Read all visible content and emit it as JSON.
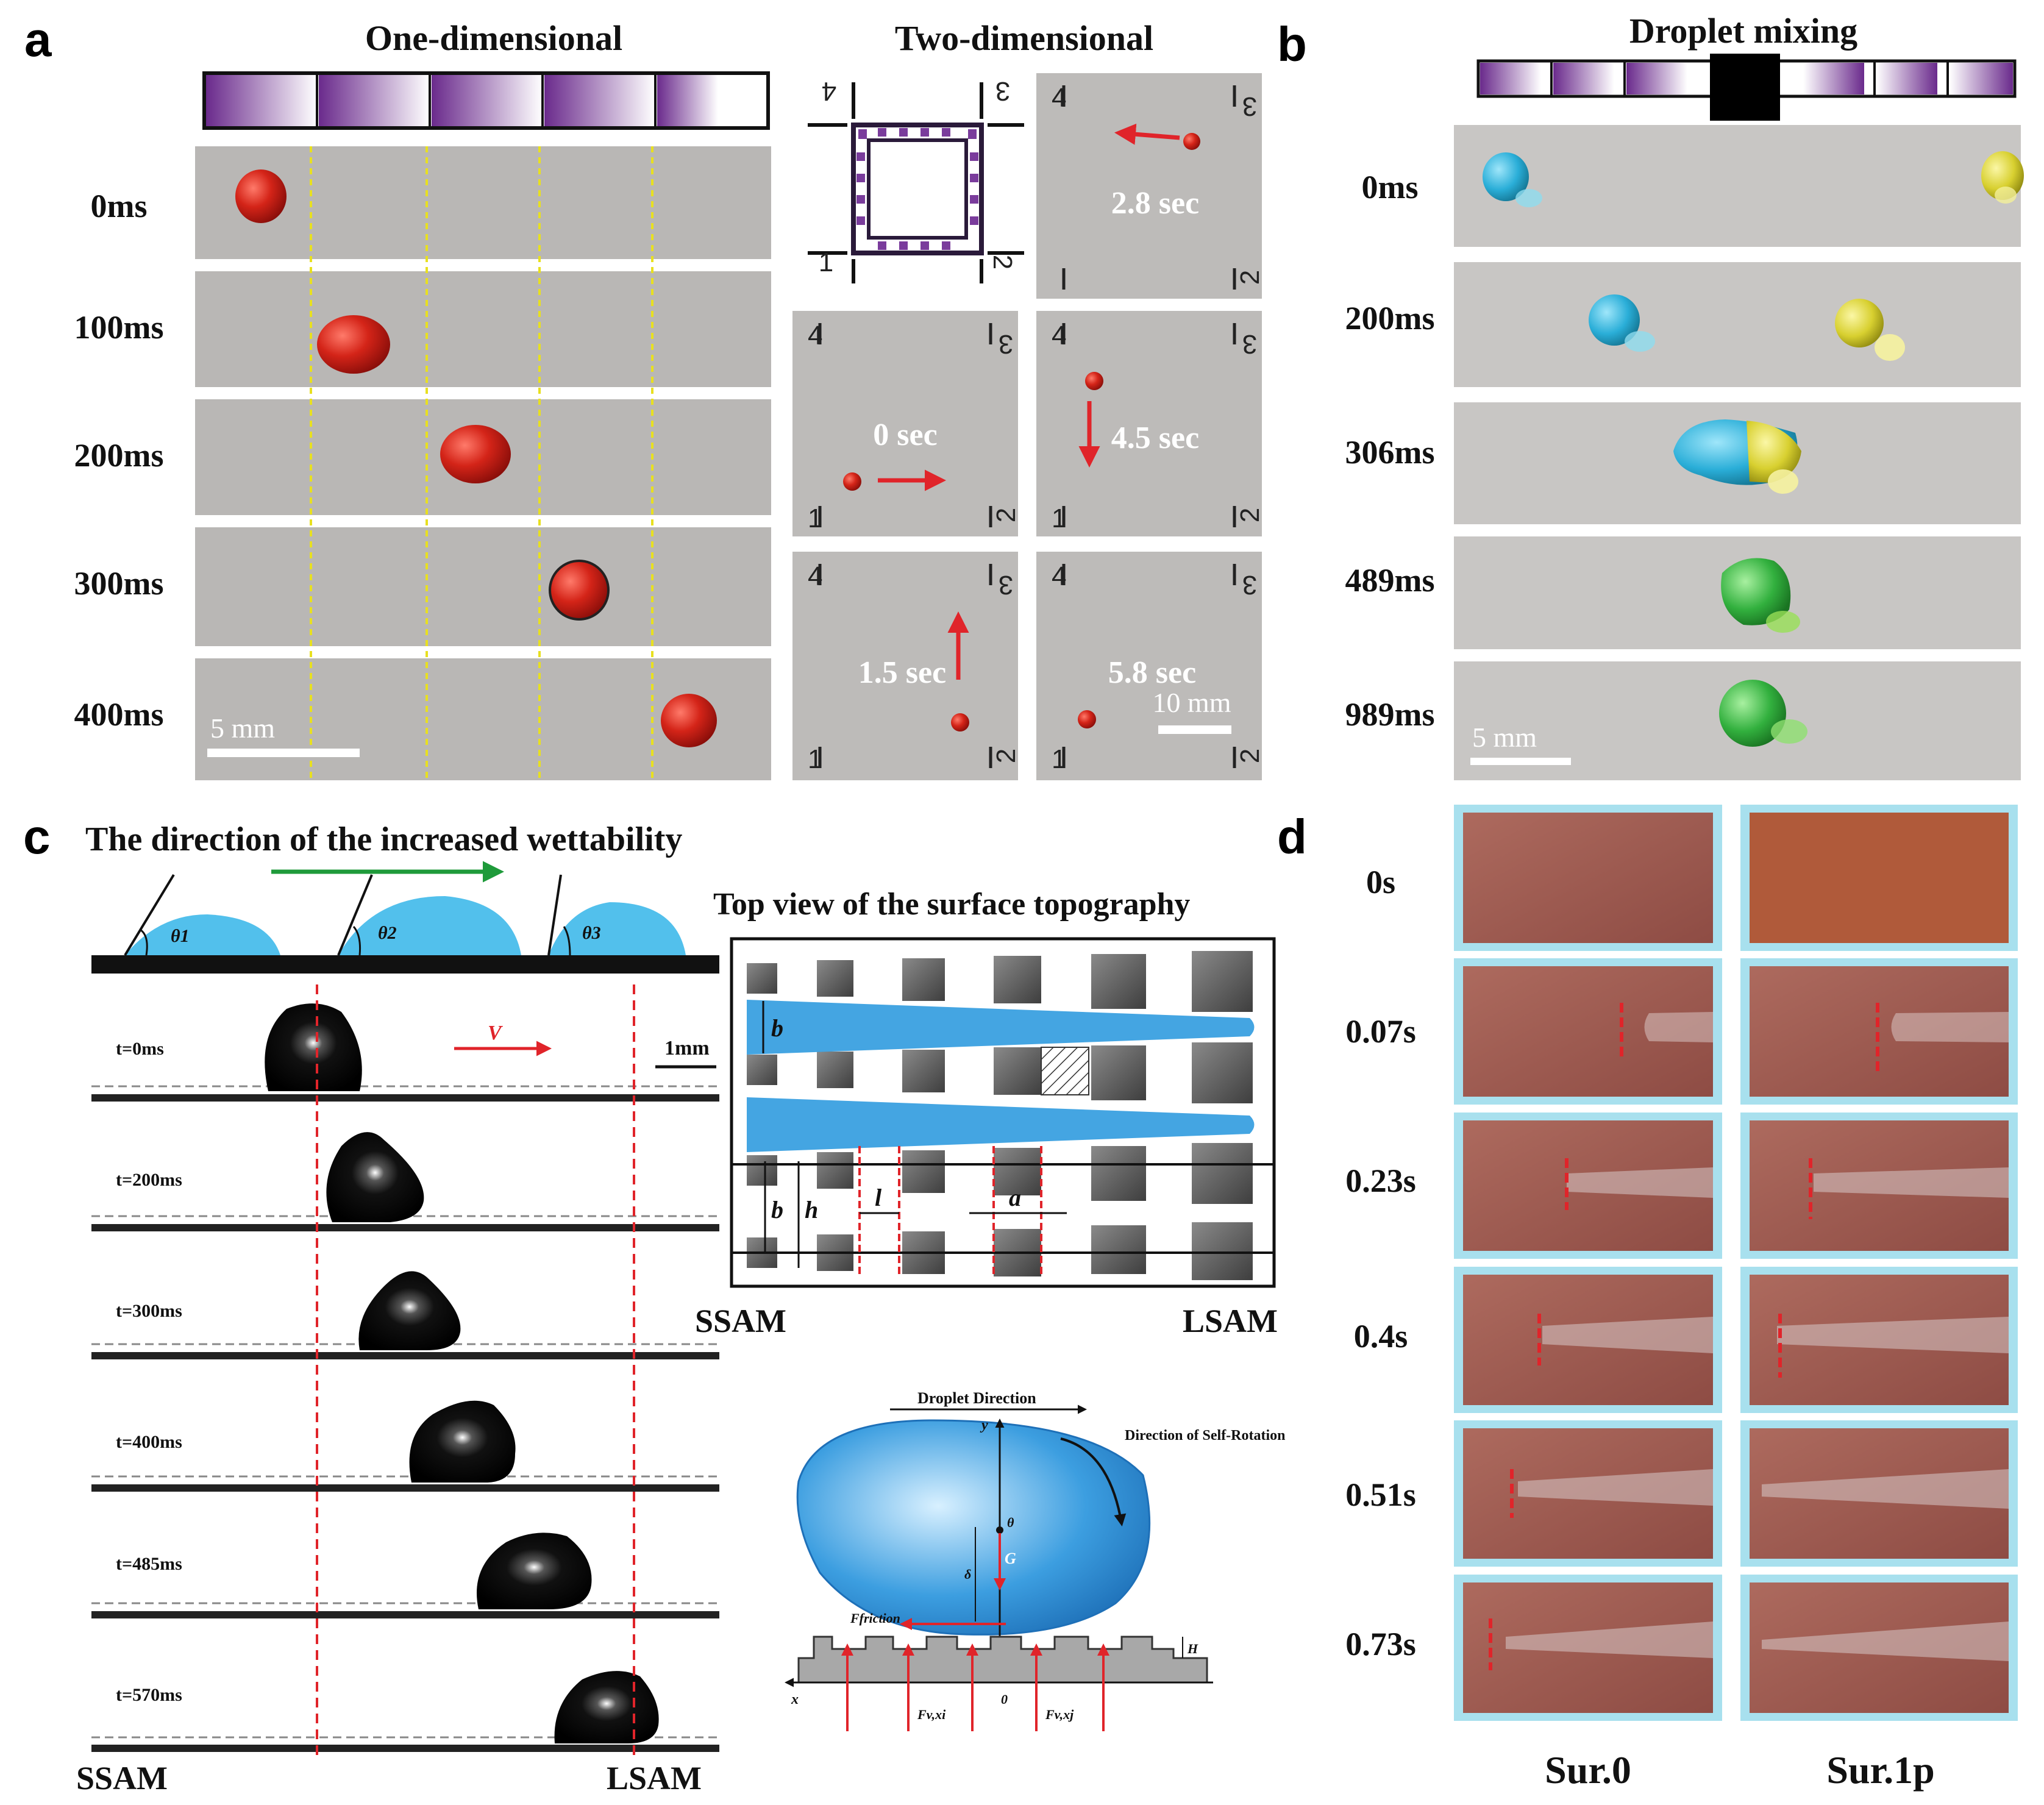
{
  "panels": {
    "a": {
      "letter": "a",
      "one_dim_title": "One-dimensional",
      "two_dim_title": "Two-dimensional",
      "time_labels": [
        "0ms",
        "100ms",
        "200ms",
        "300ms",
        "400ms"
      ],
      "scale_bar": "5 mm",
      "two_dim_times": [
        "2.8 sec",
        "0 sec",
        "4.5 sec",
        "1.5 sec",
        "5.8 sec"
      ],
      "two_dim_scale": "10 mm",
      "corner_labels": [
        "1",
        "2",
        "3",
        "4"
      ]
    },
    "b": {
      "letter": "b",
      "title": "Droplet mixing",
      "time_labels": [
        "0ms",
        "200ms",
        "306ms",
        "489ms",
        "989ms"
      ],
      "scale_bar": "5 mm"
    },
    "c": {
      "letter": "c",
      "title": "The direction of the increased wettability",
      "angle_labels": [
        "θ1",
        "θ2",
        "θ3"
      ],
      "time_labels": [
        "t=0ms",
        "t=200ms",
        "t=300ms",
        "t=400ms",
        "t=485ms",
        "t=570ms"
      ],
      "velocity_label": "V",
      "scale_bar": "1mm",
      "left_label": "SSAM",
      "right_label": "LSAM",
      "topo_title": "Top view of the surface topography",
      "topo_left": "SSAM",
      "topo_right": "LSAM",
      "topo_symbols": [
        "b",
        "b",
        "h",
        "l",
        "a"
      ],
      "force_diagram": {
        "droplet_direction": "Droplet Direction",
        "self_rotation": "Direction of Self-Rotation",
        "friction": "Ffriction",
        "gravity": "G",
        "theta": "θ",
        "delta": "δ",
        "y_axis": "y",
        "x_axis": "x",
        "origin": "0",
        "height": "H",
        "force_i": "Fv,xi",
        "force_j": "Fv,xj"
      }
    },
    "d": {
      "letter": "d",
      "time_labels": [
        "0s",
        "0.07s",
        "0.23s",
        "0.4s",
        "0.51s",
        "0.73s"
      ],
      "column_labels": [
        "Sur.0",
        "Sur.1p"
      ]
    }
  },
  "colors": {
    "photo_gray": "#b9b7b5",
    "red_droplet": "#cc1e1e",
    "cyan_droplet": "#30b0d6",
    "yellow_droplet": "#d8d23a",
    "green_droplet": "#38b848",
    "purple_gradient": "#7a3c9c",
    "blue_diagram": "#3aa0e0",
    "copper": "#a0564c",
    "cyan_frame": "#a8e0ee",
    "red_dash": "#e02020",
    "yellow_dash": "#e8e020"
  }
}
